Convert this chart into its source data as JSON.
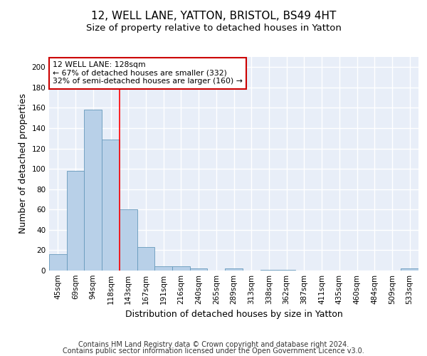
{
  "title1": "12, WELL LANE, YATTON, BRISTOL, BS49 4HT",
  "title2": "Size of property relative to detached houses in Yatton",
  "xlabel": "Distribution of detached houses by size in Yatton",
  "ylabel": "Number of detached properties",
  "categories": [
    "45sqm",
    "69sqm",
    "94sqm",
    "118sqm",
    "143sqm",
    "167sqm",
    "191sqm",
    "216sqm",
    "240sqm",
    "265sqm",
    "289sqm",
    "313sqm",
    "338sqm",
    "362sqm",
    "387sqm",
    "411sqm",
    "435sqm",
    "460sqm",
    "484sqm",
    "509sqm",
    "533sqm"
  ],
  "values": [
    16,
    98,
    158,
    129,
    60,
    23,
    4,
    4,
    2,
    0,
    2,
    0,
    1,
    1,
    0,
    0,
    0,
    0,
    0,
    0,
    2
  ],
  "bar_color": "#b8d0e8",
  "bar_edge_color": "#6699bb",
  "red_line_x": 3.5,
  "ylim": [
    0,
    210
  ],
  "yticks": [
    0,
    20,
    40,
    60,
    80,
    100,
    120,
    140,
    160,
    180,
    200
  ],
  "annotation_text": "12 WELL LANE: 128sqm\n← 67% of detached houses are smaller (332)\n32% of semi-detached houses are larger (160) →",
  "annotation_box_color": "#ffffff",
  "annotation_box_edge": "#cc0000",
  "footer1": "Contains HM Land Registry data © Crown copyright and database right 2024.",
  "footer2": "Contains public sector information licensed under the Open Government Licence v3.0.",
  "background_color": "#e8eef8",
  "grid_color": "#ffffff",
  "title1_fontsize": 11,
  "title2_fontsize": 9.5,
  "axis_label_fontsize": 9,
  "tick_fontsize": 7.5,
  "footer_fontsize": 7
}
